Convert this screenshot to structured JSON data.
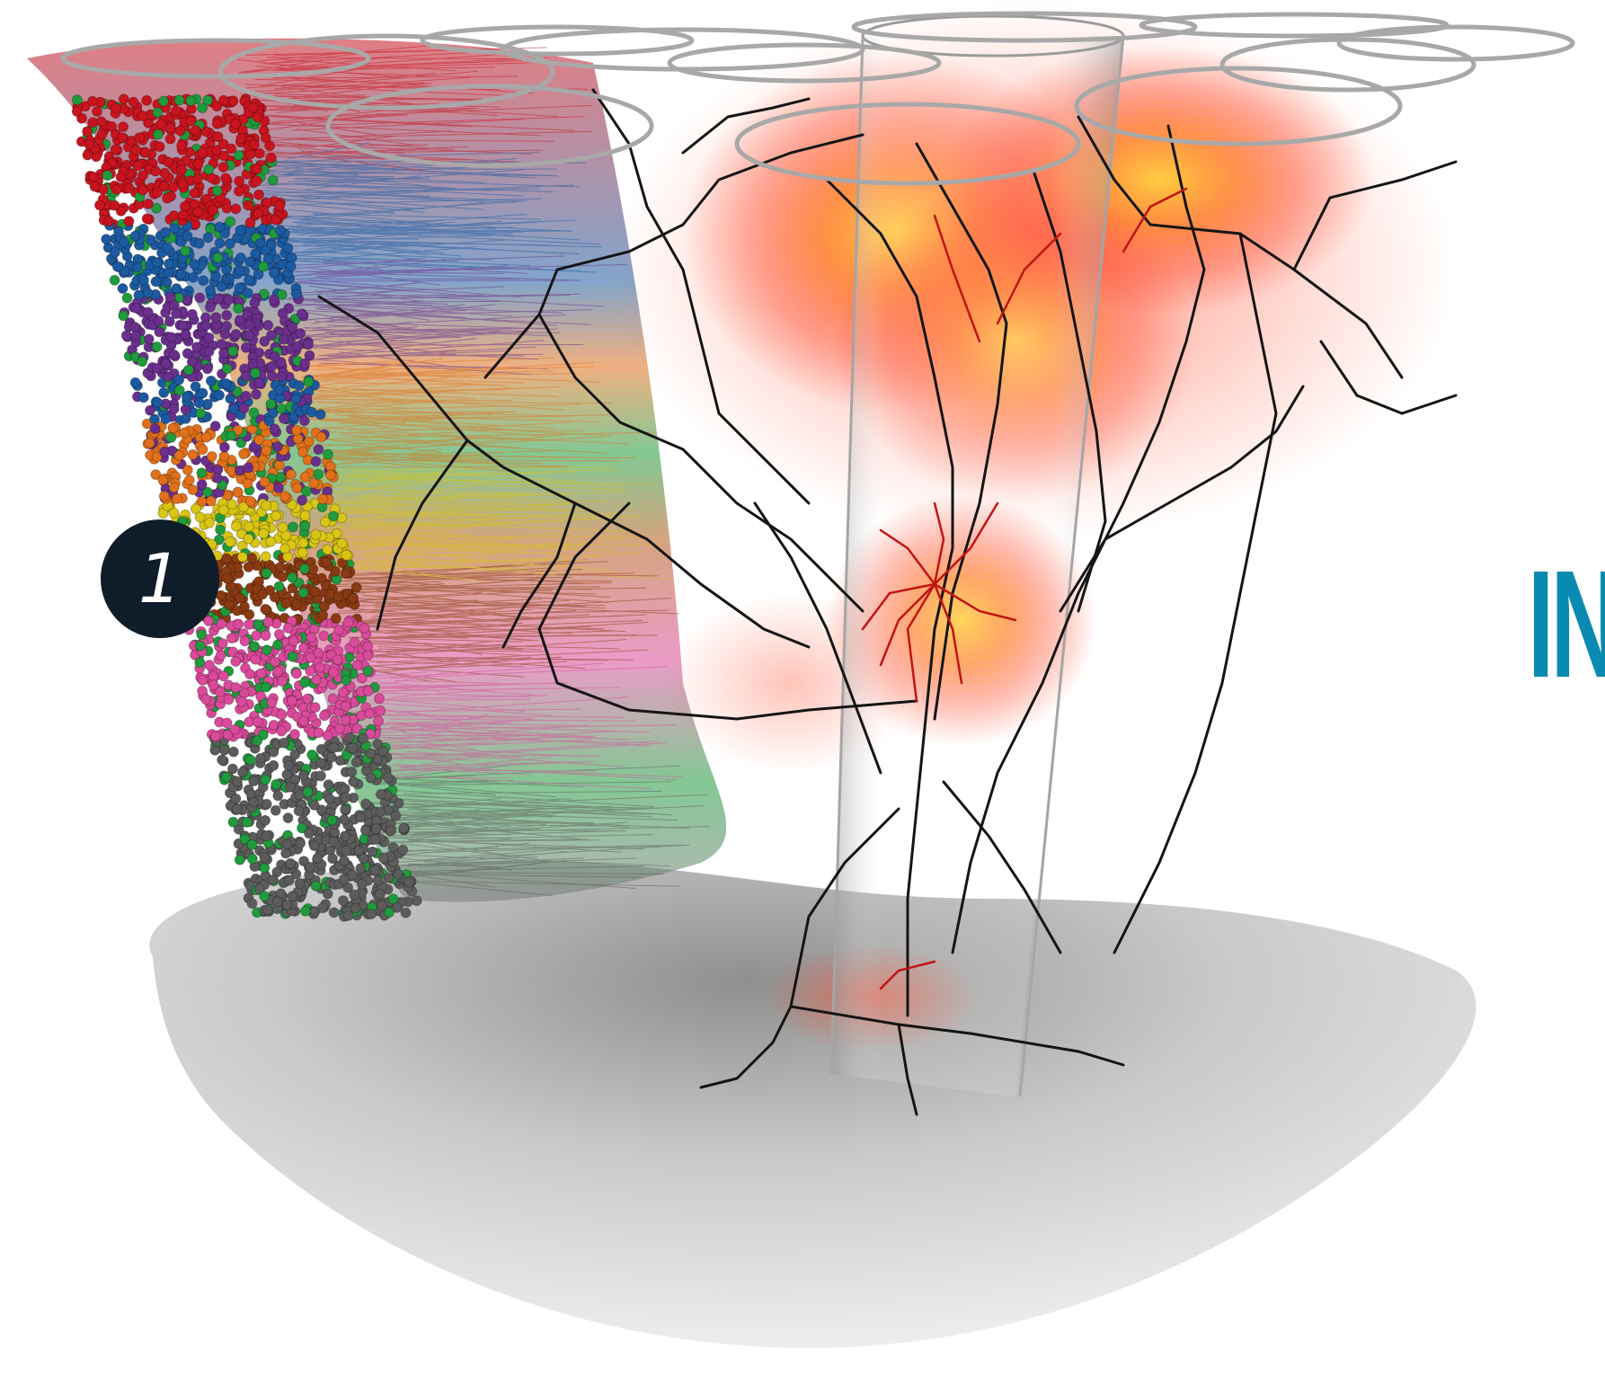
{
  "figure": {
    "badge_label": "1",
    "partial_heading": "IN",
    "heading_color": "#0a8ab0"
  },
  "scene": {
    "depicts": [
      "cortical-column-somata",
      "dendrite-arbors",
      "single-neuron-morphology",
      "axon-density-heatmap",
      "barrel-rings",
      "thalamus-surface",
      "glass-cylinder"
    ],
    "layer_colors": [
      "#c8141e",
      "#1c5aa0",
      "#6a2f8c",
      "#e0701a",
      "#d9c514",
      "#8a3a12",
      "#d94a9a",
      "#5c5c5c",
      "#1f9a3c"
    ],
    "neuron_color": "#151515",
    "heatmap_colors": [
      "#ff2a10",
      "#ff8a20",
      "#ffd040"
    ],
    "surface_color": "#bdbdbd",
    "ring_color": "#a8a8a8"
  }
}
